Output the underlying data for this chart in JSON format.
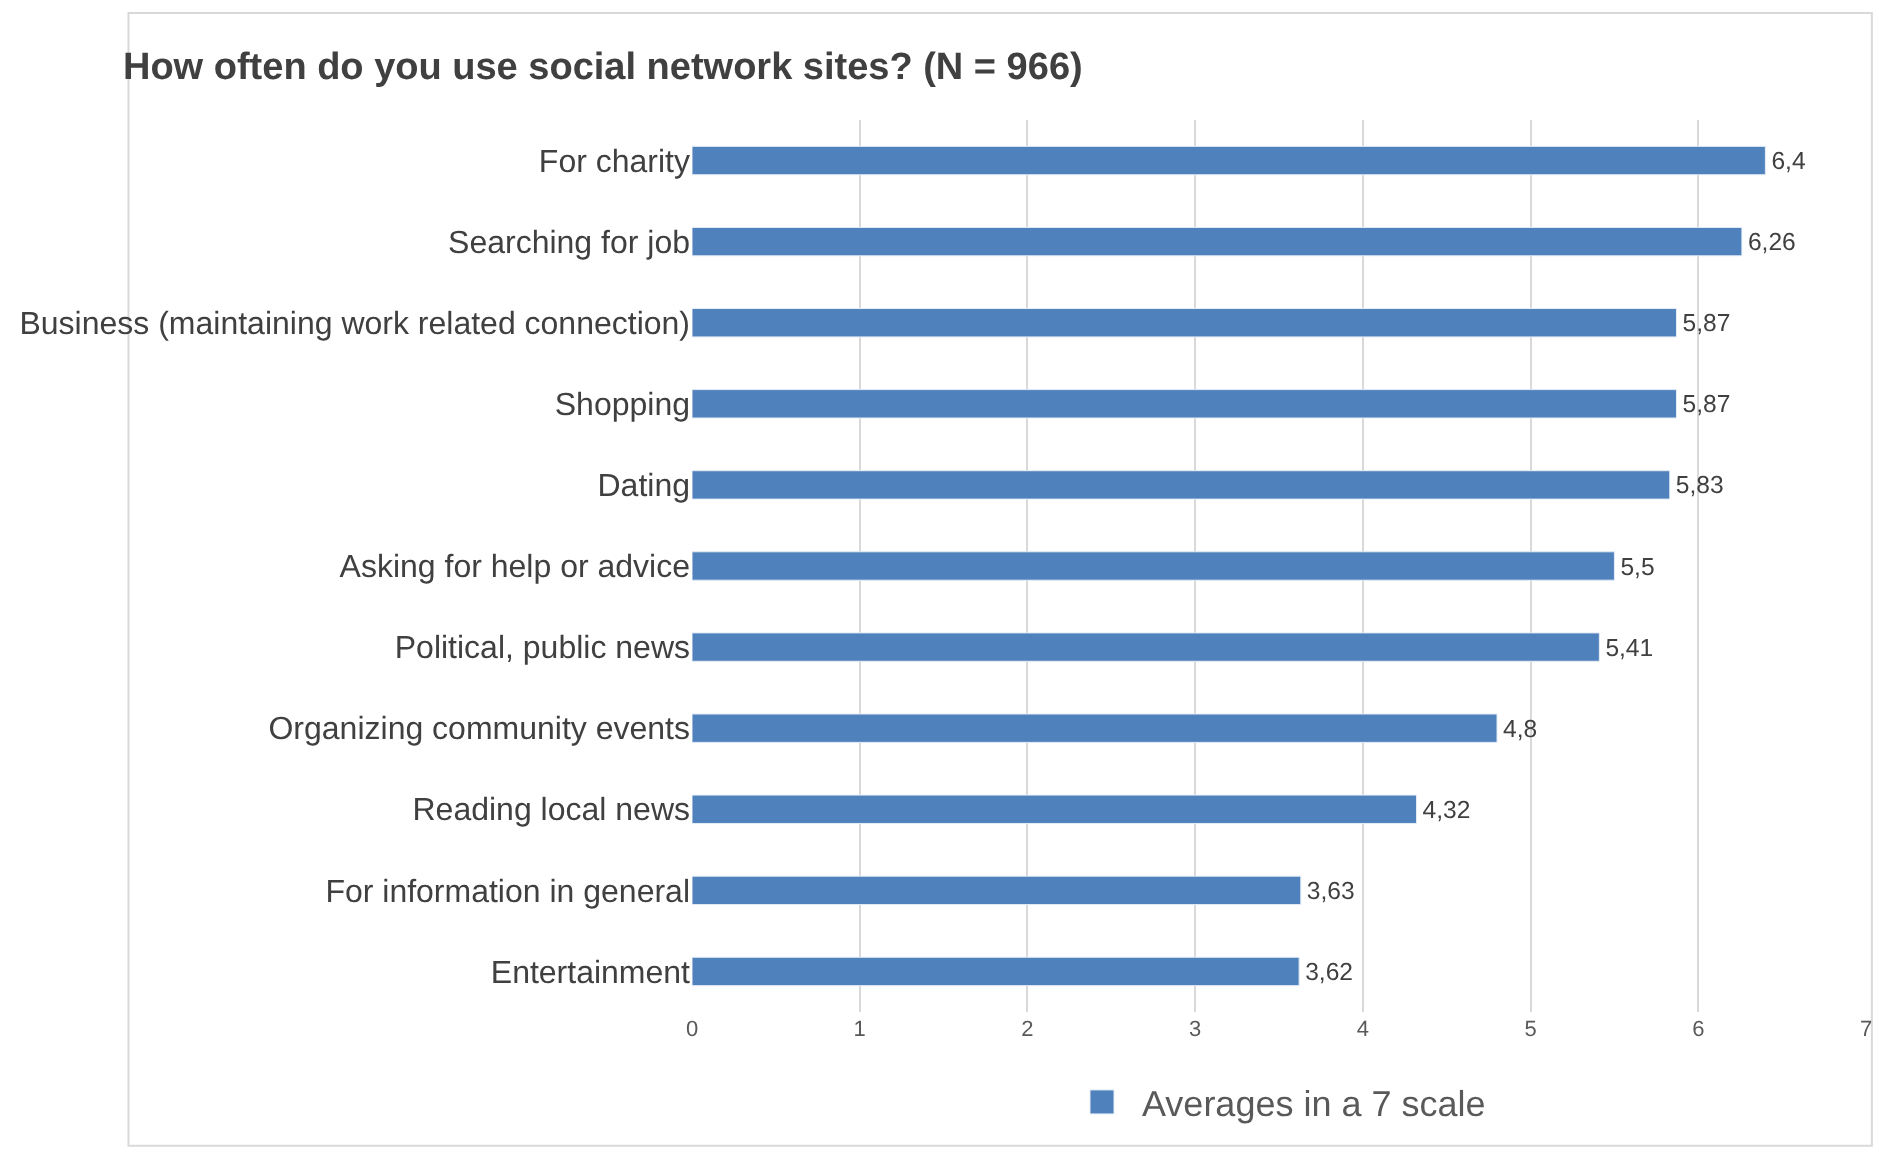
{
  "chart_data": {
    "type": "bar",
    "orientation": "horizontal",
    "title": "How often do you use social network sites? (N = 966)",
    "categories": [
      "For charity",
      "Searching for job",
      "Business (maintaining work related connection)",
      "Shopping",
      "Dating",
      "Asking for help or advice",
      "Political, public news",
      "Organizing community events",
      "Reading local news",
      "For information in general",
      "Entertainment"
    ],
    "series": [
      {
        "name": "Averages in a 7 scale",
        "color": "#4f81bd",
        "values": [
          6.4,
          6.26,
          5.87,
          5.87,
          5.83,
          5.5,
          5.41,
          4.8,
          4.32,
          3.63,
          3.62
        ],
        "value_labels": [
          "6,4",
          "6,26",
          "5,87",
          "5,87",
          "5,83",
          "5,5",
          "5,41",
          "4,8",
          "4,32",
          "3,63",
          "3,62"
        ]
      }
    ],
    "xlim": [
      0,
      7
    ],
    "xticks": [
      0,
      1,
      2,
      3,
      4,
      5,
      6,
      7
    ],
    "grid": "x",
    "legend": "bottom"
  }
}
